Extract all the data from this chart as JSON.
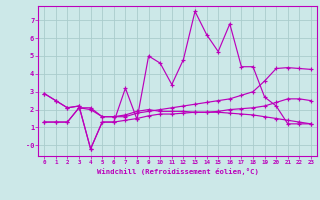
{
  "xlabel": "Windchill (Refroidissement éolien,°C)",
  "bg_color": "#cce8e8",
  "line_color": "#bb00bb",
  "grid_color": "#aacccc",
  "xlim": [
    -0.5,
    23.5
  ],
  "ylim": [
    -0.6,
    7.8
  ],
  "xticks": [
    0,
    1,
    2,
    3,
    4,
    5,
    6,
    7,
    8,
    9,
    10,
    11,
    12,
    13,
    14,
    15,
    16,
    17,
    18,
    19,
    20,
    21,
    22,
    23
  ],
  "yticks": [
    0,
    1,
    2,
    3,
    4,
    5,
    6,
    7
  ],
  "ytick_labels": [
    "-0",
    "1",
    "2",
    "3",
    "4",
    "5",
    "6",
    "7"
  ],
  "series": [
    [
      2.9,
      2.5,
      2.1,
      2.2,
      -0.2,
      1.3,
      1.3,
      1.4,
      1.5,
      1.65,
      1.75,
      1.75,
      1.8,
      1.85,
      1.85,
      1.9,
      2.0,
      2.05,
      2.1,
      2.2,
      2.4,
      2.6,
      2.6,
      2.5
    ],
    [
      2.9,
      2.5,
      2.1,
      2.2,
      -0.2,
      1.3,
      1.3,
      3.2,
      1.45,
      5.0,
      4.6,
      3.4,
      4.8,
      7.5,
      6.2,
      5.25,
      6.8,
      4.4,
      4.4,
      2.7,
      2.2,
      1.2,
      1.2,
      1.2
    ],
    [
      1.3,
      1.3,
      1.3,
      2.1,
      2.0,
      1.6,
      1.6,
      1.7,
      1.9,
      2.0,
      1.9,
      1.9,
      1.9,
      1.85,
      1.85,
      1.85,
      1.8,
      1.75,
      1.7,
      1.6,
      1.5,
      1.4,
      1.3,
      1.2
    ],
    [
      1.3,
      1.3,
      1.3,
      2.1,
      2.1,
      1.6,
      1.6,
      1.6,
      1.8,
      1.9,
      2.0,
      2.1,
      2.2,
      2.3,
      2.4,
      2.5,
      2.6,
      2.8,
      3.0,
      3.6,
      4.3,
      4.35,
      4.3,
      4.25
    ]
  ]
}
